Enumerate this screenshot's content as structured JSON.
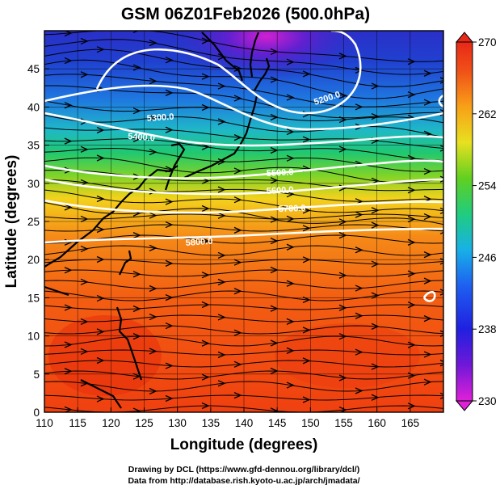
{
  "title": "GSM 06Z01Feb2026 (500.0hPa)",
  "xlabel": "Longitude (degrees)",
  "ylabel": "Latitude (degrees)",
  "x_ticks": [
    "110",
    "115",
    "120",
    "125",
    "130",
    "135",
    "140",
    "145",
    "150",
    "155",
    "160",
    "165"
  ],
  "y_ticks": [
    "0",
    "5",
    "10",
    "15",
    "20",
    "25",
    "30",
    "35",
    "40",
    "45"
  ],
  "colorbar": {
    "ticks": [
      "230",
      "238",
      "246",
      "254",
      "262",
      "270"
    ],
    "min": 230,
    "max": 270
  },
  "contour_labels": [
    "5200.0",
    "5300.0",
    "5400.0",
    "5500.0",
    "5600.0",
    "5700.0",
    "5800.0"
  ],
  "footer": {
    "line1": "Drawing by DCL (https://www.gfd-dennou.org/library/dcl/)",
    "line2": "Data from http://database.rish.kyoto-u.ac.jp/arch/jmadata/"
  },
  "map": {
    "lon_range": [
      110,
      170
    ],
    "lat_range": [
      0,
      50
    ]
  }
}
